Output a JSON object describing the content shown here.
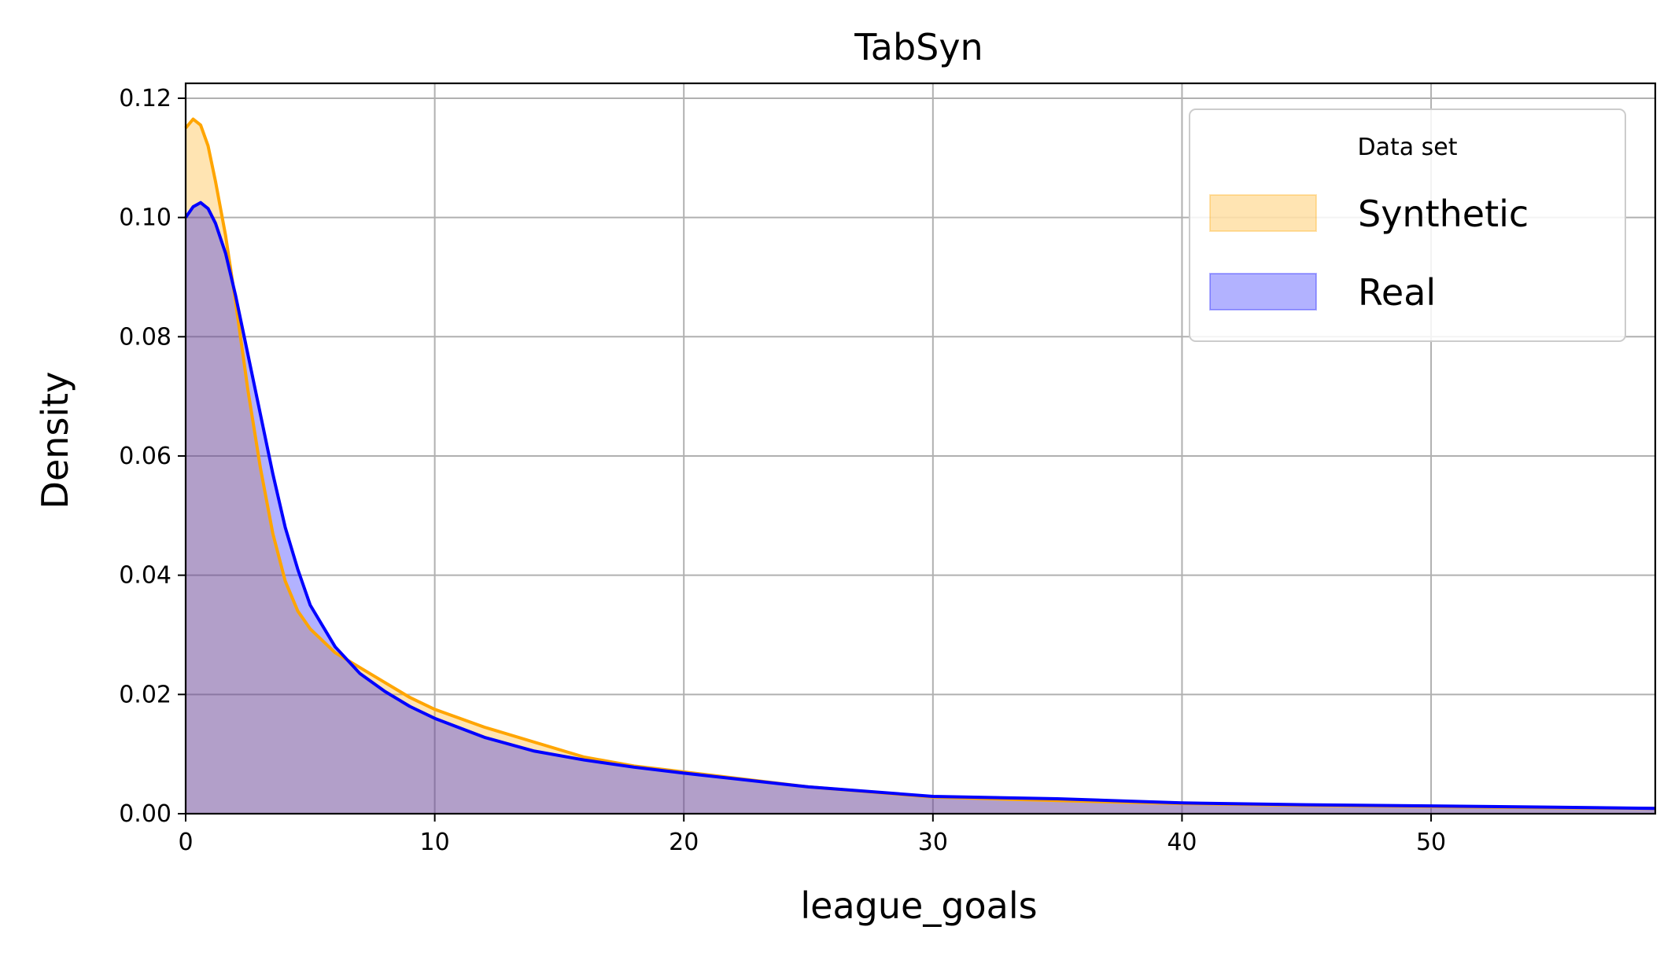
{
  "chart_data": {
    "type": "area",
    "title": "TabSyn",
    "xlabel": "league_goals",
    "ylabel": "Density",
    "xlim": [
      0,
      59
    ],
    "ylim": [
      0,
      0.1225
    ],
    "xticks": [
      0,
      10,
      20,
      30,
      40,
      50
    ],
    "xtick_labels": [
      "0",
      "10",
      "20",
      "30",
      "40",
      "50"
    ],
    "yticks": [
      0,
      0.02,
      0.04,
      0.06,
      0.08,
      0.1,
      0.12
    ],
    "ytick_labels": [
      "0.00",
      "0.02",
      "0.04",
      "0.06",
      "0.08",
      "0.10",
      "0.12"
    ],
    "grid": true,
    "legend": {
      "title": "Data set",
      "placement": "top-right"
    },
    "series": [
      {
        "name": "Synthetic",
        "line_color": "#FFA500",
        "fill_color": "#FFA500",
        "x": [
          0,
          0.3,
          0.6,
          0.9,
          1.2,
          1.6,
          2.0,
          2.5,
          3.0,
          3.5,
          4.0,
          4.5,
          5.0,
          6.0,
          7.0,
          8.0,
          9.0,
          10.0,
          12.0,
          14.0,
          16.0,
          18.0,
          20.0,
          25.0,
          30.0,
          35.0,
          40.0,
          45.0,
          50.0,
          55.0,
          59.0
        ],
        "y": [
          0.115,
          0.1165,
          0.1155,
          0.112,
          0.106,
          0.097,
          0.086,
          0.071,
          0.058,
          0.047,
          0.039,
          0.034,
          0.031,
          0.027,
          0.0245,
          0.022,
          0.0195,
          0.0175,
          0.0145,
          0.012,
          0.0095,
          0.008,
          0.007,
          0.0045,
          0.0028,
          0.0022,
          0.0017,
          0.0014,
          0.0012,
          0.001,
          0.0009
        ]
      },
      {
        "name": "Real",
        "line_color": "#0000FF",
        "fill_color": "#0000FF",
        "x": [
          0,
          0.3,
          0.6,
          0.9,
          1.2,
          1.6,
          2.0,
          2.5,
          3.0,
          3.5,
          4.0,
          4.5,
          5.0,
          6.0,
          7.0,
          8.0,
          9.0,
          10.0,
          12.0,
          14.0,
          16.0,
          18.0,
          20.0,
          25.0,
          30.0,
          35.0,
          40.0,
          45.0,
          50.0,
          55.0,
          59.0
        ],
        "y": [
          0.1,
          0.1018,
          0.1025,
          0.1015,
          0.099,
          0.094,
          0.087,
          0.077,
          0.067,
          0.057,
          0.048,
          0.041,
          0.035,
          0.028,
          0.0235,
          0.0205,
          0.018,
          0.016,
          0.0128,
          0.0105,
          0.009,
          0.0078,
          0.0068,
          0.0045,
          0.0029,
          0.0025,
          0.0018,
          0.0015,
          0.0013,
          0.0011,
          0.0009
        ]
      }
    ]
  }
}
